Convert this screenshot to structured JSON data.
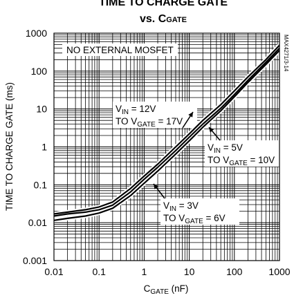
{
  "chart_data": {
    "type": "line",
    "title_line1": "TIME TO CHARGE GATE",
    "title_line2_main": "vs. C",
    "title_line2_sub": "GATE",
    "xlabel_main": "C",
    "xlabel_sub": "GATE",
    "xlabel_unit": " (nF)",
    "ylabel": "TIME TO CHARGE GATE (ms)",
    "x_scale": "log",
    "y_scale": "log",
    "xlim": [
      0.01,
      1000
    ],
    "ylim": [
      0.001,
      1000
    ],
    "x_ticks": [
      {
        "value": 0.01,
        "label": "0.01"
      },
      {
        "value": 0.1,
        "label": "0.1"
      },
      {
        "value": 1,
        "label": "1"
      },
      {
        "value": 10,
        "label": "10"
      },
      {
        "value": 100,
        "label": "100"
      },
      {
        "value": 1000,
        "label": "1000"
      }
    ],
    "y_ticks": [
      {
        "value": 0.001,
        "label": "0.001"
      },
      {
        "value": 0.01,
        "label": "0.01"
      },
      {
        "value": 0.1,
        "label": "0.1"
      },
      {
        "value": 1,
        "label": "1"
      },
      {
        "value": 10,
        "label": "10"
      },
      {
        "value": 100,
        "label": "100"
      },
      {
        "value": 1000,
        "label": "1000"
      }
    ],
    "grid": true,
    "legend": "none",
    "series": [
      {
        "x": [
          0.01,
          0.02,
          0.05,
          0.1,
          0.2,
          0.5,
          1,
          2,
          5,
          10,
          20,
          50,
          100,
          200,
          500,
          1000
        ],
        "values": [
          0.017,
          0.019,
          0.022,
          0.026,
          0.035,
          0.08,
          0.17,
          0.35,
          1.0,
          2.2,
          5.0,
          13,
          30,
          70,
          200,
          480
        ]
      },
      {
        "x": [
          0.01,
          0.02,
          0.05,
          0.1,
          0.2,
          0.5,
          1,
          2,
          5,
          10,
          20,
          50,
          100,
          200,
          500,
          1000
        ],
        "values": [
          0.015,
          0.017,
          0.019,
          0.022,
          0.029,
          0.065,
          0.14,
          0.29,
          0.8,
          1.8,
          4.0,
          10.5,
          24,
          57,
          170,
          400
        ]
      },
      {
        "x": [
          0.01,
          0.02,
          0.05,
          0.1,
          0.2,
          0.5,
          1,
          2,
          5,
          10,
          20,
          50,
          100,
          200,
          500,
          1000
        ],
        "values": [
          0.0115,
          0.013,
          0.015,
          0.018,
          0.024,
          0.052,
          0.11,
          0.23,
          0.65,
          1.45,
          3.3,
          9,
          21,
          50,
          150,
          350
        ]
      }
    ],
    "annotations": [
      {
        "id": "no-mosfet",
        "text": "NO EXTERNAL MOSFET"
      },
      {
        "id": "vin12",
        "line1_main": "V",
        "line1_sub": "IN",
        "line1_rest": " = 12V",
        "line2_main": "TO V",
        "line2_sub": "GATE",
        "line2_rest": " = 17V"
      },
      {
        "id": "vin5",
        "line1_main": "V",
        "line1_sub": "IN",
        "line1_rest": " = 5V",
        "line2_main": "TO V",
        "line2_sub": "GATE",
        "line2_rest": " = 10V"
      },
      {
        "id": "vin3",
        "line1_main": "V",
        "line1_sub": "IN",
        "line1_rest": " = 3V",
        "line2_main": "TO V",
        "line2_sub": "GATE",
        "line2_rest": " = 6V"
      }
    ],
    "side_id": "MAX4271/3-14"
  }
}
